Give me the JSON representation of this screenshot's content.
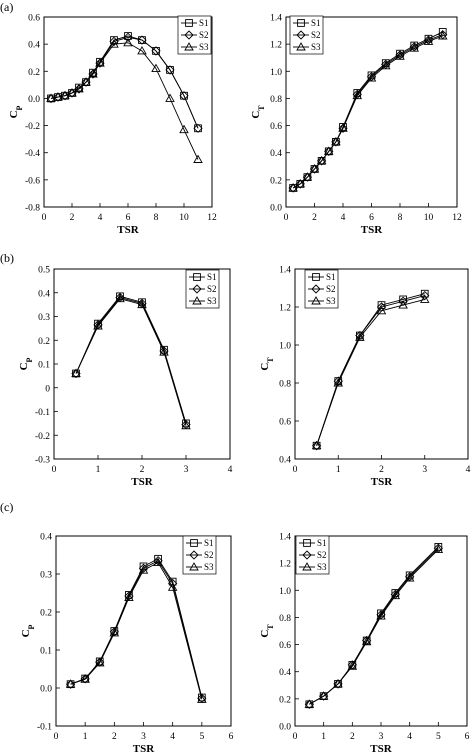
{
  "figure": {
    "panel_labels": [
      "(a)",
      "(b)",
      "(c)"
    ]
  },
  "chart_data": [
    {
      "type": "line",
      "panel": "(a)",
      "title": "",
      "xlabel": "TSR",
      "ylabel": "Cp",
      "xlim": [
        0,
        12
      ],
      "ylim": [
        -0.8,
        0.6
      ],
      "xticks": [
        0,
        2,
        4,
        6,
        8,
        10,
        12
      ],
      "yticks": [
        -0.8,
        -0.6,
        -0.4,
        -0.2,
        0,
        0.2,
        0.4,
        0.6
      ],
      "ytick_labels": [
        "-0.8",
        "-0.6",
        "-0.4",
        "-0.2",
        "0.0",
        "0.2",
        "0.4",
        "0.6"
      ],
      "grid": false,
      "legend": "top-right",
      "series": [
        {
          "name": "S1",
          "marker": "square",
          "x": [
            0.5,
            1.0,
            1.5,
            2.0,
            2.5,
            3.0,
            3.5,
            4.0,
            5.0,
            6.0,
            7.0,
            8.0,
            9.0,
            10.0,
            11.0
          ],
          "y": [
            0.0,
            0.01,
            0.02,
            0.04,
            0.08,
            0.12,
            0.19,
            0.27,
            0.43,
            0.46,
            0.43,
            0.35,
            0.21,
            0.02,
            -0.22
          ]
        },
        {
          "name": "S2",
          "marker": "diamond",
          "x": [
            0.5,
            1.0,
            1.5,
            2.0,
            2.5,
            3.0,
            3.5,
            4.0,
            5.0,
            6.0,
            7.0,
            8.0,
            9.0,
            10.0,
            11.0
          ],
          "y": [
            0.0,
            0.01,
            0.02,
            0.04,
            0.07,
            0.12,
            0.18,
            0.26,
            0.42,
            0.45,
            0.43,
            0.35,
            0.21,
            0.02,
            -0.22
          ]
        },
        {
          "name": "S3",
          "marker": "triangle",
          "x": [
            0.5,
            1.0,
            1.5,
            2.0,
            2.5,
            3.0,
            3.5,
            4.0,
            5.0,
            6.0,
            7.0,
            8.0,
            9.0,
            10.0,
            11.0
          ],
          "y": [
            0.0,
            0.01,
            0.02,
            0.04,
            0.07,
            0.12,
            0.18,
            0.26,
            0.4,
            0.41,
            0.35,
            0.22,
            0.0,
            -0.23,
            -0.45
          ]
        }
      ]
    },
    {
      "type": "line",
      "panel": "(a)",
      "title": "",
      "xlabel": "TSR",
      "ylabel": "CT",
      "xlim": [
        0,
        12
      ],
      "ylim": [
        0,
        1.4
      ],
      "xticks": [
        0,
        2,
        4,
        6,
        8,
        10,
        12
      ],
      "yticks": [
        0,
        0.2,
        0.4,
        0.6,
        0.8,
        1.0,
        1.2,
        1.4
      ],
      "ytick_labels": [
        "0.0",
        "0.2",
        "0.4",
        "0.6",
        "0.8",
        "1.0",
        "1.2",
        "1.4"
      ],
      "grid": false,
      "legend": "top-left",
      "series": [
        {
          "name": "S1",
          "marker": "square",
          "x": [
            0.5,
            1.0,
            1.5,
            2.0,
            2.5,
            3.0,
            3.5,
            4.0,
            5.0,
            6.0,
            7.0,
            8.0,
            9.0,
            10.0,
            11.0
          ],
          "y": [
            0.14,
            0.17,
            0.22,
            0.28,
            0.34,
            0.41,
            0.48,
            0.59,
            0.84,
            0.97,
            1.06,
            1.13,
            1.19,
            1.24,
            1.29
          ]
        },
        {
          "name": "S2",
          "marker": "diamond",
          "x": [
            0.5,
            1.0,
            1.5,
            2.0,
            2.5,
            3.0,
            3.5,
            4.0,
            5.0,
            6.0,
            7.0,
            8.0,
            9.0,
            10.0,
            11.0
          ],
          "y": [
            0.14,
            0.17,
            0.22,
            0.28,
            0.34,
            0.41,
            0.48,
            0.58,
            0.83,
            0.96,
            1.05,
            1.12,
            1.18,
            1.23,
            1.27
          ]
        },
        {
          "name": "S3",
          "marker": "triangle",
          "x": [
            0.5,
            1.0,
            1.5,
            2.0,
            2.5,
            3.0,
            3.5,
            4.0,
            5.0,
            6.0,
            7.0,
            8.0,
            9.0,
            10.0,
            11.0
          ],
          "y": [
            0.14,
            0.17,
            0.22,
            0.28,
            0.34,
            0.41,
            0.48,
            0.58,
            0.82,
            0.95,
            1.04,
            1.11,
            1.17,
            1.22,
            1.26
          ]
        }
      ]
    },
    {
      "type": "line",
      "panel": "(b)",
      "title": "",
      "xlabel": "TSR",
      "ylabel": "Cp",
      "xlim": [
        0,
        4
      ],
      "ylim": [
        -0.3,
        0.5
      ],
      "xticks": [
        0,
        1,
        2,
        3,
        4
      ],
      "yticks": [
        -0.3,
        -0.2,
        -0.1,
        0,
        0.1,
        0.2,
        0.3,
        0.4,
        0.5
      ],
      "ytick_labels": [
        "-0.3",
        "-0.2",
        "-0.1",
        "0",
        "0.1",
        "0.2",
        "0.3",
        "0.4",
        "0.5"
      ],
      "grid": false,
      "legend": "top-right",
      "series": [
        {
          "name": "S1",
          "marker": "square",
          "x": [
            0.5,
            1.0,
            1.5,
            2.0,
            2.5,
            3.0
          ],
          "y": [
            0.06,
            0.27,
            0.385,
            0.36,
            0.16,
            -0.15
          ]
        },
        {
          "name": "S2",
          "marker": "diamond",
          "x": [
            0.5,
            1.0,
            1.5,
            2.0,
            2.5,
            3.0
          ],
          "y": [
            0.06,
            0.265,
            0.38,
            0.355,
            0.155,
            -0.155
          ]
        },
        {
          "name": "S3",
          "marker": "triangle",
          "x": [
            0.5,
            1.0,
            1.5,
            2.0,
            2.5,
            3.0
          ],
          "y": [
            0.06,
            0.26,
            0.375,
            0.35,
            0.15,
            -0.16
          ]
        }
      ]
    },
    {
      "type": "line",
      "panel": "(b)",
      "title": "",
      "xlabel": "TSR",
      "ylabel": "CT",
      "xlim": [
        0,
        4
      ],
      "ylim": [
        0.4,
        1.4
      ],
      "xticks": [
        0,
        1,
        2,
        3,
        4
      ],
      "yticks": [
        0.4,
        0.6,
        0.8,
        1.0,
        1.2,
        1.4
      ],
      "ytick_labels": [
        "0.4",
        "0.6",
        "0.8",
        "1.0",
        "1.2",
        "1.4"
      ],
      "grid": false,
      "legend": "top-right",
      "series": [
        {
          "name": "S1",
          "marker": "square",
          "x": [
            0.5,
            1.0,
            1.5,
            2.0,
            2.5,
            3.0
          ],
          "y": [
            0.47,
            0.81,
            1.05,
            1.21,
            1.24,
            1.27
          ]
        },
        {
          "name": "S2",
          "marker": "diamond",
          "x": [
            0.5,
            1.0,
            1.5,
            2.0,
            2.5,
            3.0
          ],
          "y": [
            0.47,
            0.81,
            1.05,
            1.2,
            1.23,
            1.26
          ]
        },
        {
          "name": "S3",
          "marker": "triangle",
          "x": [
            0.5,
            1.0,
            1.5,
            2.0,
            2.5,
            3.0
          ],
          "y": [
            0.47,
            0.8,
            1.04,
            1.18,
            1.21,
            1.24
          ]
        }
      ]
    },
    {
      "type": "line",
      "panel": "(c)",
      "title": "",
      "xlabel": "TSR",
      "ylabel": "Cp",
      "xlim": [
        0,
        6
      ],
      "ylim": [
        -0.1,
        0.4
      ],
      "xticks": [
        0,
        1,
        2,
        3,
        4,
        5,
        6
      ],
      "yticks": [
        -0.1,
        0,
        0.1,
        0.2,
        0.3,
        0.4
      ],
      "ytick_labels": [
        "-0.1",
        "0.0",
        "0.1",
        "0.2",
        "0.3",
        "0.4"
      ],
      "grid": false,
      "legend": "top-right",
      "series": [
        {
          "name": "S1",
          "marker": "square",
          "x": [
            0.5,
            1.0,
            1.5,
            2.0,
            2.5,
            3.0,
            3.5,
            4.0,
            5.0
          ],
          "y": [
            0.01,
            0.025,
            0.07,
            0.15,
            0.245,
            0.32,
            0.34,
            0.28,
            -0.025
          ]
        },
        {
          "name": "S2",
          "marker": "diamond",
          "x": [
            0.5,
            1.0,
            1.5,
            2.0,
            2.5,
            3.0,
            3.5,
            4.0,
            5.0
          ],
          "y": [
            0.01,
            0.024,
            0.068,
            0.148,
            0.242,
            0.315,
            0.335,
            0.275,
            -0.027
          ]
        },
        {
          "name": "S3",
          "marker": "triangle",
          "x": [
            0.5,
            1.0,
            1.5,
            2.0,
            2.5,
            3.0,
            3.5,
            4.0,
            5.0
          ],
          "y": [
            0.01,
            0.023,
            0.066,
            0.145,
            0.238,
            0.31,
            0.33,
            0.265,
            -0.03
          ]
        }
      ]
    },
    {
      "type": "line",
      "panel": "(c)",
      "title": "",
      "xlabel": "TSR",
      "ylabel": "CT",
      "xlim": [
        0,
        6
      ],
      "ylim": [
        0,
        1.4
      ],
      "xticks": [
        0,
        1,
        2,
        3,
        4,
        5,
        6
      ],
      "yticks": [
        0,
        0.2,
        0.4,
        0.6,
        0.8,
        1.0,
        1.2,
        1.4
      ],
      "ytick_labels": [
        "0.0",
        "0.2",
        "0.4",
        "0.6",
        "0.8",
        "1.0",
        "1.2",
        "1.4"
      ],
      "grid": false,
      "legend": "top-left",
      "series": [
        {
          "name": "S1",
          "marker": "square",
          "x": [
            0.5,
            1.0,
            1.5,
            2.0,
            2.5,
            3.0,
            3.5,
            4.0,
            5.0
          ],
          "y": [
            0.16,
            0.22,
            0.31,
            0.45,
            0.63,
            0.83,
            0.98,
            1.11,
            1.32
          ]
        },
        {
          "name": "S2",
          "marker": "diamond",
          "x": [
            0.5,
            1.0,
            1.5,
            2.0,
            2.5,
            3.0,
            3.5,
            4.0,
            5.0
          ],
          "y": [
            0.16,
            0.22,
            0.31,
            0.45,
            0.63,
            0.82,
            0.97,
            1.1,
            1.31
          ]
        },
        {
          "name": "S3",
          "marker": "triangle",
          "x": [
            0.5,
            1.0,
            1.5,
            2.0,
            2.5,
            3.0,
            3.5,
            4.0,
            5.0
          ],
          "y": [
            0.16,
            0.22,
            0.31,
            0.44,
            0.62,
            0.81,
            0.96,
            1.09,
            1.3
          ]
        }
      ]
    }
  ]
}
